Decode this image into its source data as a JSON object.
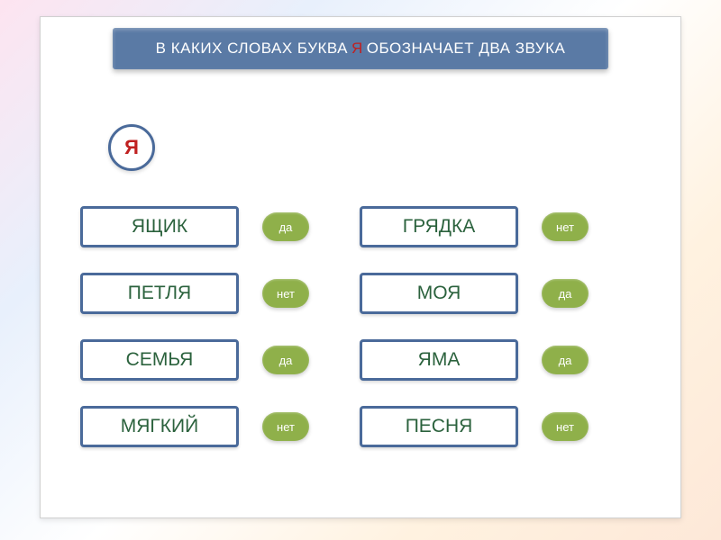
{
  "title": {
    "prefix": "В КАКИХ СЛОВАХ БУКВА",
    "accent": "Я",
    "suffix": "ОБОЗНАЧАЕТ ДВА ЗВУКА"
  },
  "circle_letter": "Я",
  "colors": {
    "card_bg": "#ffffff",
    "title_bg": "#5a7aa5",
    "title_text": "#ffffff",
    "accent_text": "#c02020",
    "box_border": "#4a6a9a",
    "word_text": "#2b623d",
    "pill_yes": "#8fb04a",
    "pill_no": "#8fb04a",
    "pill_text": "#ffffff"
  },
  "answer_labels": {
    "yes": "да",
    "no": "нет"
  },
  "rows": [
    {
      "left": {
        "word": "ЯЩИК",
        "answer": "yes"
      },
      "right": {
        "word": "ГРЯДКА",
        "answer": "no"
      }
    },
    {
      "left": {
        "word": "ПЕТЛЯ",
        "answer": "no"
      },
      "right": {
        "word": "МОЯ",
        "answer": "yes"
      }
    },
    {
      "left": {
        "word": "СЕМЬЯ",
        "answer": "yes"
      },
      "right": {
        "word": "ЯМА",
        "answer": "yes"
      }
    },
    {
      "left": {
        "word": "МЯГКИЙ",
        "answer": "no"
      },
      "right": {
        "word": "ПЕСНЯ",
        "answer": "no"
      }
    }
  ]
}
